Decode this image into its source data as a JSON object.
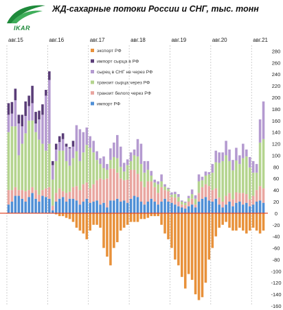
{
  "header": {
    "title": "ЖД-сахарные  потоки России и СНГ, тыс. тонн",
    "logo_text": "IKAR"
  },
  "colors": {
    "export": "#e8913a",
    "import_raw": "#5a3d78",
    "raw_cis": "#b49ad0",
    "transit_raw": "#b4d48e",
    "transit_white": "#e9a6a0",
    "import_rf": "#4f8fd6",
    "zero_line": "#e0482c",
    "logo": "#1f8a3b"
  },
  "chart_data": {
    "type": "bar",
    "stacked": true,
    "title": "ЖД-сахарные  потоки России и СНГ, тыс. тонн",
    "xlabel": "",
    "ylabel": "",
    "ylim": [
      -160,
      290
    ],
    "yticks": [
      -160,
      -140,
      -120,
      -100,
      -80,
      -60,
      -40,
      -20,
      0,
      20,
      40,
      60,
      80,
      100,
      120,
      140,
      160,
      180,
      200,
      220,
      240,
      260,
      280
    ],
    "ytick_labels": [
      "-160",
      "-140",
      "-120",
      "-100",
      "-80",
      "-60",
      "-40",
      "-20",
      "0",
      "20",
      "40",
      "60",
      "80",
      "100",
      "120",
      "140",
      "160",
      "180",
      "200",
      "220",
      "240",
      "260",
      "280"
    ],
    "x_tick_labels": [
      {
        "label": "авг.15",
        "index": 0
      },
      {
        "label": "авг.16",
        "index": 12
      },
      {
        "label": "авг.17",
        "index": 24
      },
      {
        "label": "авг.18",
        "index": 36
      },
      {
        "label": "авг.19",
        "index": 48
      },
      {
        "label": "авг.20",
        "index": 60
      },
      {
        "label": "авг.21",
        "index": 72
      }
    ],
    "grid": {
      "x": true,
      "y": false
    },
    "legend_position": "top-center",
    "series": [
      {
        "name": "импорт РФ",
        "key": "import_rf",
        "values": [
          15,
          20,
          30,
          30,
          25,
          20,
          28,
          35,
          25,
          20,
          30,
          28,
          25,
          5,
          20,
          25,
          28,
          20,
          25,
          25,
          22,
          15,
          20,
          25,
          18,
          20,
          22,
          15,
          18,
          10,
          22,
          22,
          25,
          20,
          22,
          18,
          25,
          30,
          28,
          20,
          15,
          20,
          25,
          20,
          15,
          20,
          25,
          20,
          18,
          15,
          12,
          10,
          8,
          12,
          15,
          10,
          20,
          25,
          28,
          22,
          20,
          25,
          15,
          10,
          15,
          20,
          12,
          18,
          20,
          15,
          18,
          12,
          15,
          20,
          22,
          18
        ]
      },
      {
        "name": "транзит белого через РФ",
        "key": "transit_white",
        "values": [
          25,
          20,
          15,
          10,
          15,
          18,
          12,
          10,
          15,
          12,
          10,
          15,
          20,
          8,
          15,
          18,
          10,
          15,
          12,
          20,
          25,
          25,
          30,
          28,
          25,
          30,
          35,
          45,
          40,
          50,
          55,
          55,
          45,
          40,
          35,
          40,
          50,
          45,
          40,
          35,
          30,
          35,
          30,
          25,
          20,
          25,
          15,
          18,
          10,
          12,
          8,
          5,
          6,
          8,
          10,
          5,
          15,
          20,
          22,
          25,
          20,
          18,
          12,
          10,
          15,
          15,
          12,
          18,
          15,
          20,
          15,
          12,
          15,
          20,
          25,
          25
        ]
      },
      {
        "name": "транзит сырца через РФ",
        "key": "transit_raw",
        "values": [
          100,
          110,
          105,
          60,
          80,
          100,
          120,
          115,
          100,
          95,
          80,
          65,
          75,
          45,
          55,
          65,
          70,
          55,
          45,
          50,
          60,
          50,
          55,
          65,
          70,
          55,
          35,
          25,
          20,
          15,
          15,
          20,
          25,
          20,
          15,
          25,
          15,
          25,
          30,
          30,
          25,
          20,
          10,
          8,
          15,
          10,
          6,
          4,
          4,
          6,
          8,
          5,
          4,
          6,
          8,
          10,
          20,
          12,
          15,
          20,
          30,
          45,
          60,
          70,
          70,
          55,
          50,
          55,
          50,
          60,
          65,
          55,
          40,
          30,
          75,
          85
        ]
      },
      {
        "name": "сырец в СНГ не через РФ",
        "key": "raw_cis",
        "values": [
          30,
          22,
          45,
          55,
          30,
          30,
          25,
          30,
          15,
          35,
          50,
          95,
          110,
          25,
          20,
          15,
          20,
          25,
          30,
          20,
          45,
          55,
          35,
          30,
          20,
          20,
          15,
          10,
          20,
          10,
          20,
          25,
          40,
          35,
          15,
          10,
          15,
          10,
          30,
          35,
          20,
          15,
          8,
          5,
          5,
          12,
          4,
          2,
          4,
          4,
          5,
          2,
          2,
          4,
          8,
          6,
          12,
          6,
          7,
          4,
          15,
          20,
          18,
          15,
          25,
          20,
          18,
          22,
          15,
          25,
          12,
          18,
          20,
          15,
          40,
          65
        ]
      },
      {
        "name": "импорт сырца в РФ",
        "key": "import_raw",
        "values": [
          20,
          20,
          20,
          15,
          20,
          25,
          18,
          30,
          20,
          15,
          18,
          10,
          15,
          7,
          10,
          10,
          10,
          5,
          2,
          10,
          0,
          0,
          0,
          0,
          0,
          0,
          0,
          0,
          0,
          0,
          0,
          0,
          0,
          0,
          0,
          0,
          0,
          0,
          0,
          0,
          0,
          0,
          0,
          0,
          0,
          0,
          0,
          0,
          0,
          0,
          0,
          0,
          0,
          0,
          0,
          0,
          0,
          0,
          0,
          0,
          0,
          0,
          0,
          0,
          0,
          0,
          0,
          0,
          0,
          0,
          0,
          0,
          0,
          0,
          0,
          0
        ]
      },
      {
        "name": "экспорт РФ",
        "key": "export",
        "values": [
          0,
          0,
          0,
          0,
          0,
          0,
          0,
          0,
          0,
          0,
          0,
          0,
          0,
          0,
          -2,
          -5,
          -5,
          -8,
          -10,
          -15,
          -25,
          -30,
          -35,
          -45,
          -30,
          -20,
          -20,
          -25,
          -60,
          -75,
          -90,
          -60,
          -50,
          -30,
          -25,
          -20,
          -15,
          -15,
          -15,
          -10,
          -10,
          -8,
          -5,
          -5,
          -5,
          -20,
          -35,
          -45,
          -60,
          -80,
          -90,
          -110,
          -130,
          -105,
          -115,
          -140,
          -150,
          -145,
          -120,
          -80,
          -60,
          -40,
          -25,
          -20,
          -15,
          -25,
          -30,
          -30,
          -25,
          -30,
          -35,
          -30,
          -25,
          -30,
          -35,
          -30
        ]
      }
    ]
  }
}
